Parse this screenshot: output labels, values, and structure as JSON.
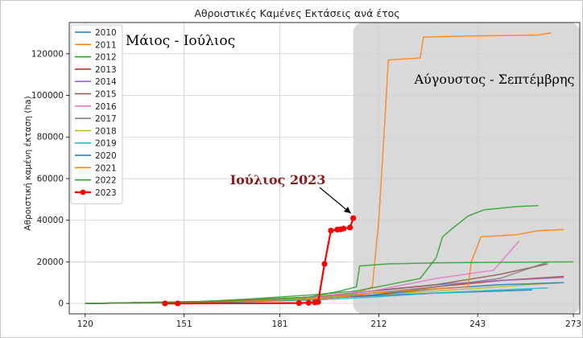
{
  "chart_data": {
    "type": "line",
    "title": "Αθροιστικές Καμένες Εκτάσεις ανά έτος",
    "xlabel": "",
    "ylabel": "Αθροιστική καμένη έκταση (ha)",
    "xlim": [
      115,
      275
    ],
    "ylim": [
      -5000,
      135000
    ],
    "xticks": [
      "120",
      "151",
      "181",
      "212",
      "243",
      "273"
    ],
    "xtick_values": [
      120,
      151,
      181,
      212,
      243,
      273
    ],
    "yticks": [
      "0",
      "20000",
      "40000",
      "60000",
      "80000",
      "100000",
      "120000"
    ],
    "ytick_values": [
      0,
      20000,
      40000,
      60000,
      80000,
      100000,
      120000
    ],
    "grid": true,
    "legend_position": "top-left",
    "shaded_region": {
      "x0": 204,
      "x1": 275,
      "color": "#d9d9d9"
    },
    "annotations": [
      {
        "id": "may_july",
        "text": "Μάιος - Ιούλιος",
        "color": "#000000"
      },
      {
        "id": "aug_sep",
        "text": "Αύγουστος - Σεπτέμβρης",
        "color": "#000000"
      },
      {
        "id": "july2023",
        "text": "Ιούλιος 2023",
        "color": "#8b1a1a",
        "arrow_to": [
          204,
          41000
        ]
      }
    ],
    "series": [
      {
        "name": "2010",
        "color": "#1f77b4",
        "x": [
          120,
          160,
          185,
          200,
          215,
          230,
          250,
          260
        ],
        "y": [
          0,
          500,
          1500,
          3000,
          4000,
          5000,
          6000,
          6500
        ]
      },
      {
        "name": "2011",
        "color": "#ff7f0e",
        "x": [
          120,
          135,
          160,
          190,
          205,
          210,
          212,
          214,
          215,
          220,
          225,
          226,
          240,
          262,
          266
        ],
        "y": [
          0,
          300,
          1000,
          2500,
          5000,
          8000,
          40000,
          90000,
          117000,
          117500,
          118000,
          128000,
          128500,
          129000,
          130000
        ]
      },
      {
        "name": "2012",
        "color": "#2ca02c",
        "x": [
          120,
          150,
          170,
          190,
          205,
          215,
          225,
          230,
          232,
          235,
          240,
          245,
          255,
          262
        ],
        "y": [
          0,
          500,
          2000,
          4000,
          6000,
          9000,
          12000,
          22000,
          32000,
          36000,
          42000,
          45000,
          46500,
          47000
        ]
      },
      {
        "name": "2013",
        "color": "#d62728",
        "x": [
          120,
          160,
          190,
          210,
          230,
          250,
          270
        ],
        "y": [
          0,
          800,
          2000,
          4000,
          8000,
          11000,
          13000
        ]
      },
      {
        "name": "2014",
        "color": "#9467bd",
        "x": [
          120,
          160,
          190,
          210,
          230,
          250,
          270
        ],
        "y": [
          0,
          1000,
          3000,
          6000,
          9000,
          11000,
          12500
        ]
      },
      {
        "name": "2015",
        "color": "#8c564b",
        "x": [
          120,
          160,
          190,
          210,
          230,
          250,
          265
        ],
        "y": [
          0,
          1000,
          3000,
          6000,
          9000,
          14000,
          19000
        ]
      },
      {
        "name": "2016",
        "color": "#e377c2",
        "x": [
          120,
          160,
          190,
          210,
          230,
          248,
          256
        ],
        "y": [
          0,
          1000,
          3000,
          6000,
          12000,
          16000,
          30000
        ]
      },
      {
        "name": "2017",
        "color": "#7f7f7f",
        "x": [
          120,
          160,
          190,
          210,
          230,
          250,
          265
        ],
        "y": [
          0,
          800,
          2500,
          5000,
          8000,
          12000,
          20000
        ]
      },
      {
        "name": "2018",
        "color": "#bcbd22",
        "x": [
          120,
          160,
          190,
          210,
          230,
          250,
          268
        ],
        "y": [
          0,
          800,
          2500,
          4000,
          6000,
          8000,
          10000
        ]
      },
      {
        "name": "2019",
        "color": "#17becf",
        "x": [
          120,
          160,
          190,
          210,
          230,
          250,
          265
        ],
        "y": [
          0,
          600,
          1500,
          3000,
          5000,
          6500,
          7500
        ]
      },
      {
        "name": "2020",
        "color": "#1f77b4",
        "x": [
          120,
          160,
          190,
          210,
          230,
          250,
          270
        ],
        "y": [
          0,
          700,
          2000,
          4000,
          7000,
          9000,
          10000
        ]
      },
      {
        "name": "2021",
        "color": "#ff7f0e",
        "x": [
          120,
          160,
          190,
          200,
          210,
          240,
          241,
          244,
          255,
          262,
          270
        ],
        "y": [
          0,
          800,
          2000,
          3000,
          5000,
          8000,
          20000,
          32000,
          33000,
          35000,
          35500
        ]
      },
      {
        "name": "2022",
        "color": "#2ca02c",
        "x": [
          120,
          160,
          190,
          200,
          205,
          206,
          215,
          230,
          250,
          273
        ],
        "y": [
          0,
          1000,
          3000,
          6000,
          8000,
          18000,
          19000,
          19500,
          19800,
          20000
        ]
      },
      {
        "name": "2023",
        "color": "#ff0000",
        "x": [
          145,
          149,
          187,
          190,
          192,
          193,
          195,
          197,
          199,
          200,
          201,
          203,
          204
        ],
        "y": [
          0,
          0,
          200,
          300,
          500,
          700,
          19000,
          35000,
          35500,
          35600,
          36000,
          36500,
          41000
        ]
      }
    ]
  }
}
